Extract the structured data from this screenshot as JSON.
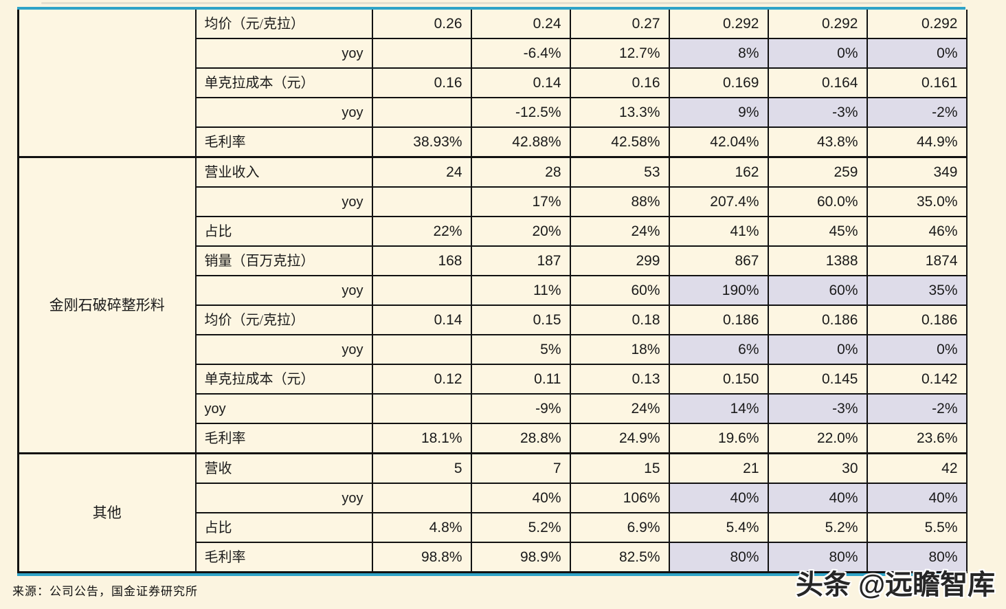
{
  "page": {
    "background_color": "#fbf4e0",
    "cell_background_color": "#fdf6e2",
    "highlight_color": "#dedce9",
    "accent_border_color": "#2fa3c7",
    "source_note": "来源：公司公告，国金证券研究所",
    "watermark": "头条 @远瞻智库"
  },
  "table": {
    "data_column_count": 6,
    "sections": [
      {
        "category": "",
        "rows": [
          {
            "label": "均价（元/克拉）",
            "align": "left",
            "values": [
              "0.26",
              "0.24",
              "0.27",
              "0.292",
              "0.292",
              "0.292"
            ],
            "highlight_cols": []
          },
          {
            "label": "yoy",
            "align": "right",
            "values": [
              "",
              "-6.4%",
              "12.7%",
              "8%",
              "0%",
              "0%"
            ],
            "highlight_cols": [
              3,
              4,
              5
            ]
          },
          {
            "label": "单克拉成本（元）",
            "align": "left",
            "values": [
              "0.16",
              "0.14",
              "0.16",
              "0.169",
              "0.164",
              "0.161"
            ],
            "highlight_cols": []
          },
          {
            "label": "yoy",
            "align": "right",
            "values": [
              "",
              "-12.5%",
              "13.3%",
              "9%",
              "-3%",
              "-2%"
            ],
            "highlight_cols": [
              3,
              4,
              5
            ]
          },
          {
            "label": "毛利率",
            "align": "left",
            "values": [
              "38.93%",
              "42.88%",
              "42.58%",
              "42.04%",
              "43.8%",
              "44.9%"
            ],
            "highlight_cols": []
          }
        ]
      },
      {
        "category": "金刚石破碎整形料",
        "rows": [
          {
            "label": "营业收入",
            "align": "left",
            "values": [
              "24",
              "28",
              "53",
              "162",
              "259",
              "349"
            ],
            "highlight_cols": []
          },
          {
            "label": "yoy",
            "align": "right",
            "values": [
              "",
              "17%",
              "88%",
              "207.4%",
              "60.0%",
              "35.0%"
            ],
            "highlight_cols": []
          },
          {
            "label": "占比",
            "align": "left",
            "values": [
              "22%",
              "20%",
              "24%",
              "41%",
              "45%",
              "46%"
            ],
            "highlight_cols": []
          },
          {
            "label": "销量（百万克拉）",
            "align": "left",
            "values": [
              "168",
              "187",
              "299",
              "867",
              "1388",
              "1874"
            ],
            "highlight_cols": []
          },
          {
            "label": "yoy",
            "align": "right",
            "values": [
              "",
              "11%",
              "60%",
              "190%",
              "60%",
              "35%"
            ],
            "highlight_cols": [
              3,
              4,
              5
            ]
          },
          {
            "label": "均价（元/克拉）",
            "align": "left",
            "values": [
              "0.14",
              "0.15",
              "0.18",
              "0.186",
              "0.186",
              "0.186"
            ],
            "highlight_cols": []
          },
          {
            "label": "yoy",
            "align": "right",
            "values": [
              "",
              "5%",
              "18%",
              "6%",
              "0%",
              "0%"
            ],
            "highlight_cols": [
              3,
              4,
              5
            ]
          },
          {
            "label": "单克拉成本（元）",
            "align": "left",
            "values": [
              "0.12",
              "0.11",
              "0.13",
              "0.150",
              "0.145",
              "0.142"
            ],
            "highlight_cols": []
          },
          {
            "label": "yoy",
            "align": "left",
            "values": [
              "",
              "-9%",
              "24%",
              "14%",
              "-3%",
              "-2%"
            ],
            "highlight_cols": [
              3,
              4,
              5
            ]
          },
          {
            "label": "毛利率",
            "align": "left",
            "values": [
              "18.1%",
              "28.8%",
              "24.9%",
              "19.6%",
              "22.0%",
              "23.6%"
            ],
            "highlight_cols": []
          }
        ]
      },
      {
        "category": "其他",
        "rows": [
          {
            "label": "营收",
            "align": "left",
            "values": [
              "5",
              "7",
              "15",
              "21",
              "30",
              "42"
            ],
            "highlight_cols": []
          },
          {
            "label": "yoy",
            "align": "right",
            "values": [
              "",
              "40%",
              "106%",
              "40%",
              "40%",
              "40%"
            ],
            "highlight_cols": [
              3,
              4,
              5
            ]
          },
          {
            "label": "占比",
            "align": "left",
            "values": [
              "4.8%",
              "5.2%",
              "6.9%",
              "5.4%",
              "5.2%",
              "5.5%"
            ],
            "highlight_cols": []
          },
          {
            "label": "毛利率",
            "align": "left",
            "values": [
              "98.8%",
              "98.9%",
              "82.5%",
              "80%",
              "80%",
              "80%"
            ],
            "highlight_cols": [
              3,
              4,
              5
            ]
          }
        ]
      }
    ]
  }
}
